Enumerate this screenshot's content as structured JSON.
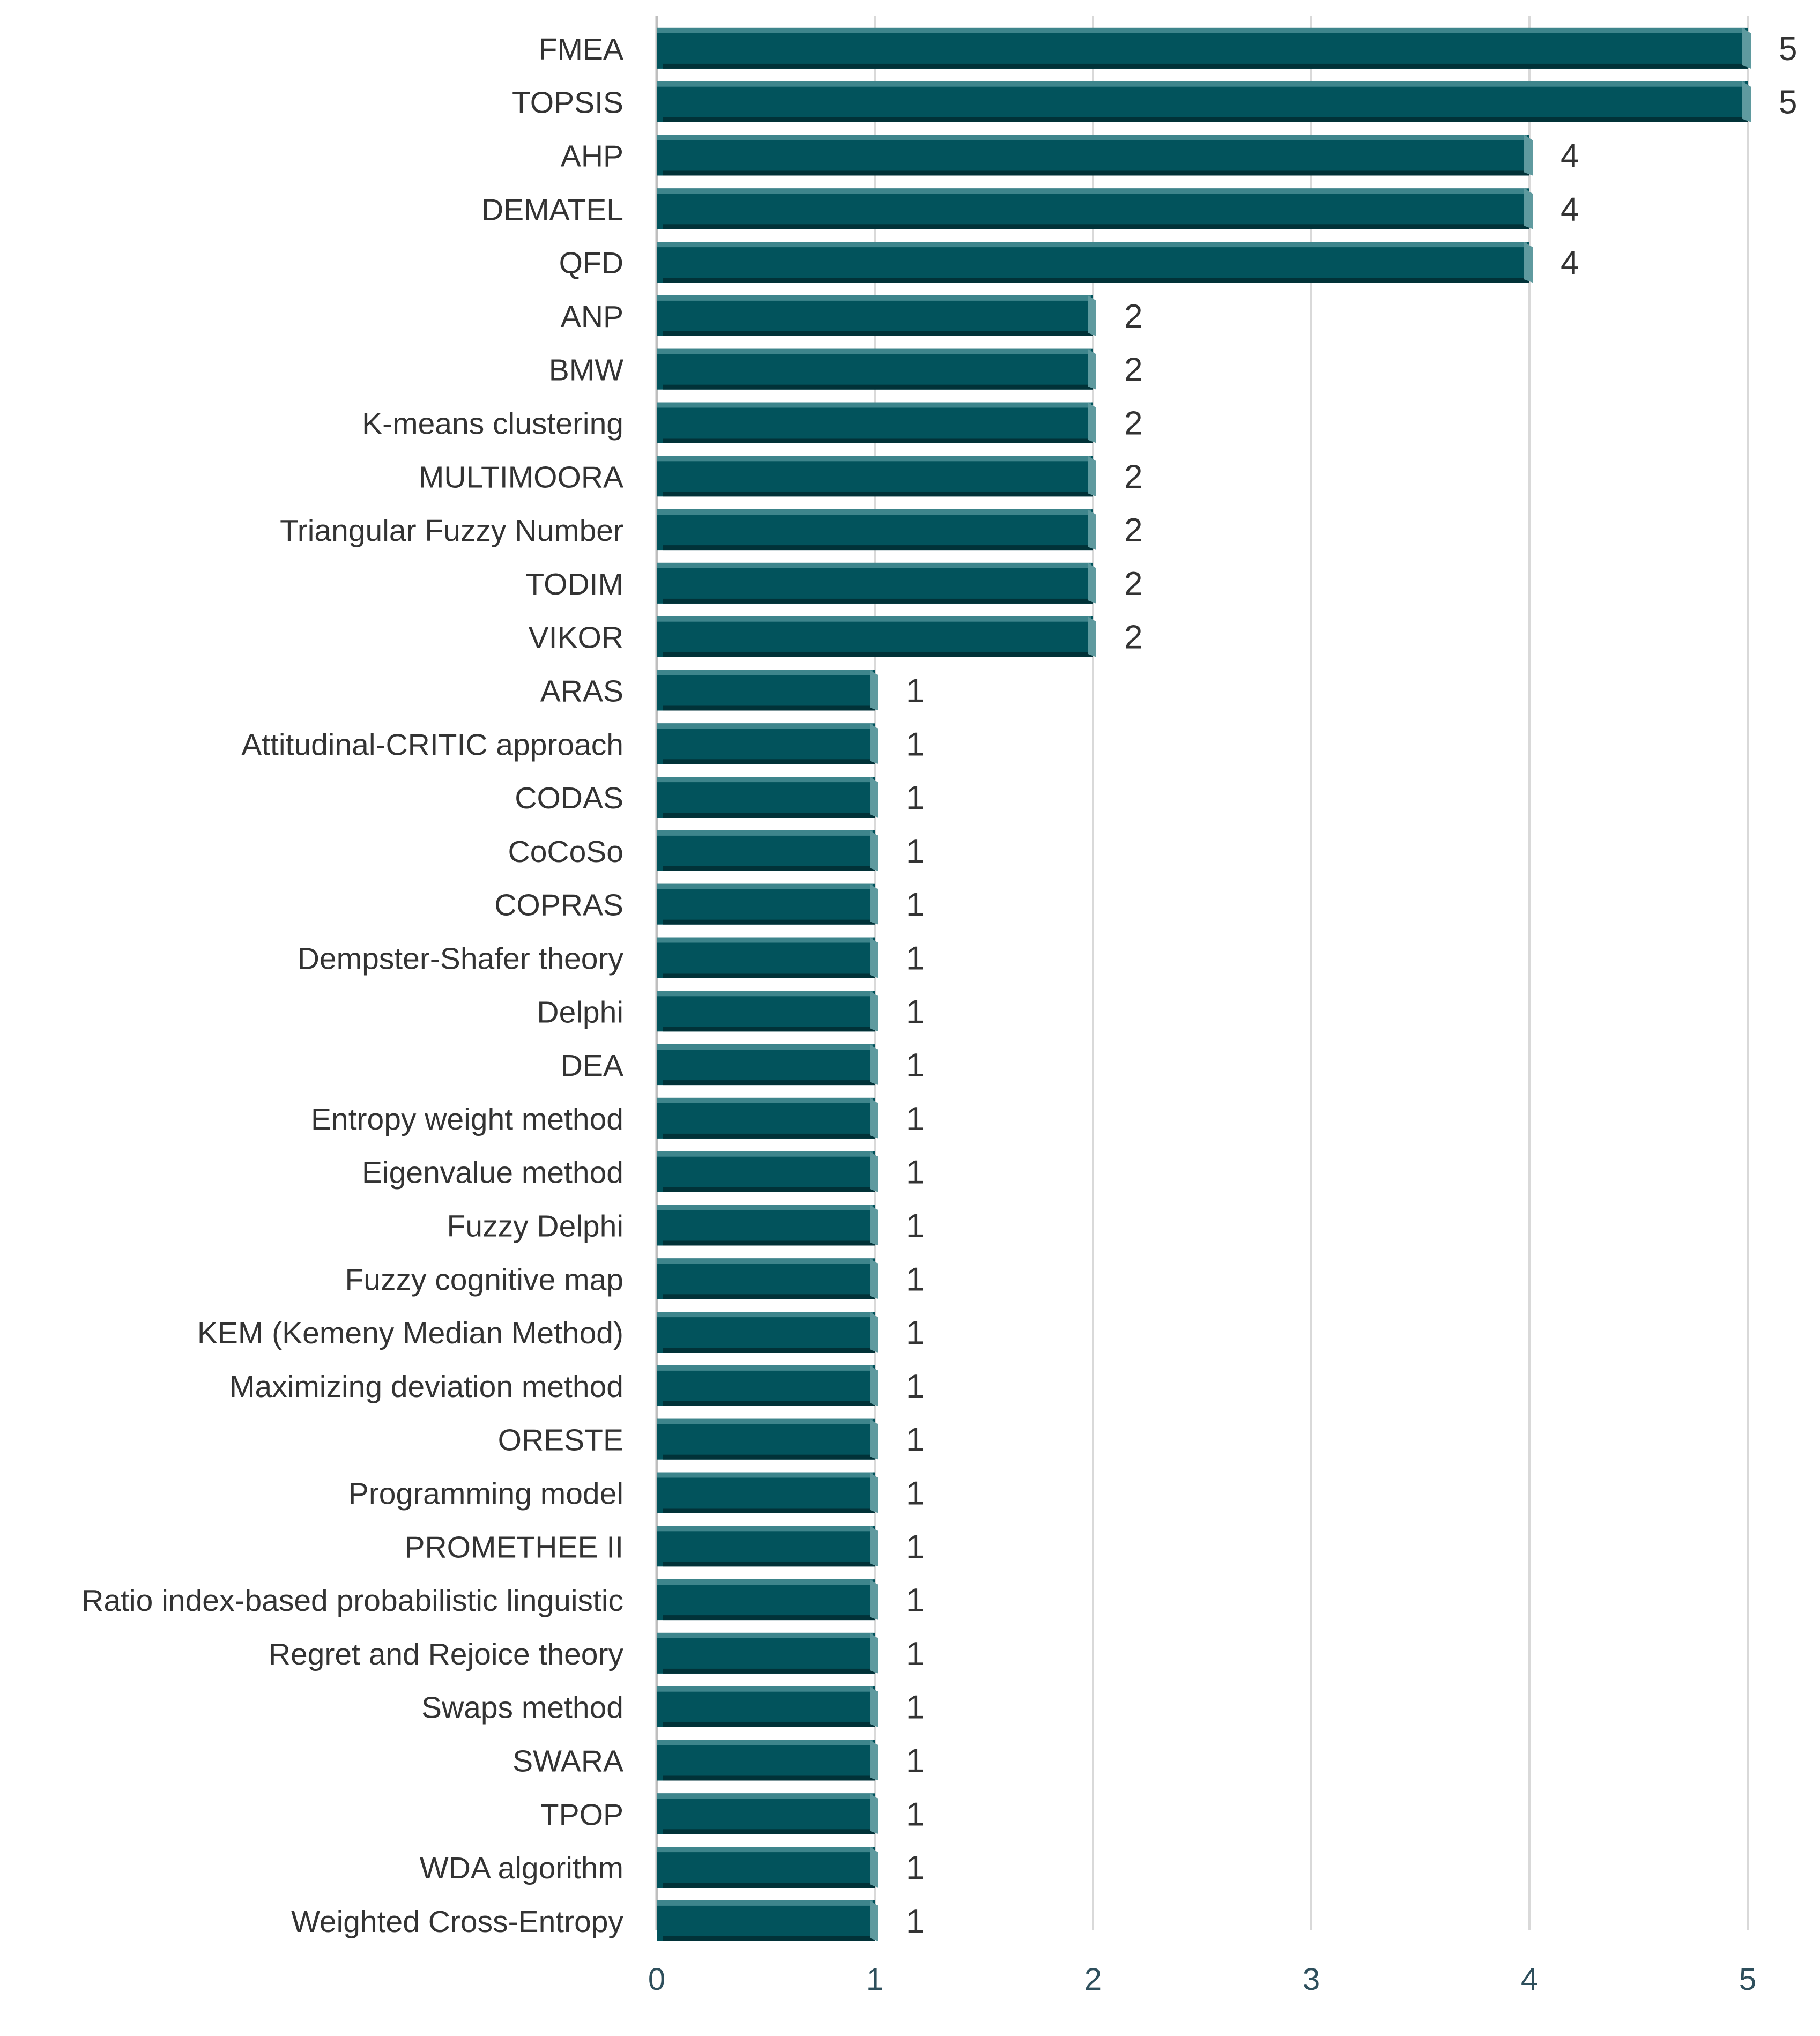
{
  "chart_data": {
    "type": "bar",
    "orientation": "horizontal",
    "title": "",
    "xlabel": "",
    "ylabel": "",
    "xlim": [
      0,
      5
    ],
    "x_ticks": [
      0,
      1,
      2,
      3,
      4,
      5
    ],
    "grid": "vertical",
    "categories": [
      "FMEA",
      "TOPSIS",
      "AHP",
      "DEMATEL",
      "QFD",
      "ANP",
      "BMW",
      "K-means clustering",
      "MULTIMOORA",
      "Triangular Fuzzy Number",
      "TODIM",
      "VIKOR",
      "ARAS",
      "Attitudinal-CRITIC approach",
      "CODAS",
      "CoCoSo",
      "COPRAS",
      "Dempster-Shafer theory",
      "Delphi",
      "DEA",
      "Entropy weight method",
      "Eigenvalue method",
      "Fuzzy Delphi",
      "Fuzzy cognitive map",
      "KEM (Kemeny Median Method)",
      "Maximizing deviation method",
      "ORESTE",
      "Programming model",
      "PROMETHEE II",
      "Ratio index-based probabilistic linguistic",
      "Regret and Rejoice theory",
      "Swaps method",
      "SWARA",
      "TPOP",
      "WDA algorithm",
      "Weighted Cross-Entropy"
    ],
    "values": [
      5,
      5,
      4,
      4,
      4,
      2,
      2,
      2,
      2,
      2,
      2,
      2,
      1,
      1,
      1,
      1,
      1,
      1,
      1,
      1,
      1,
      1,
      1,
      1,
      1,
      1,
      1,
      1,
      1,
      1,
      1,
      1,
      1,
      1,
      1,
      1
    ],
    "data_labels": true
  },
  "colors": {
    "bar_front": "#02535c",
    "bar_top": "#3e858c",
    "bar_side": "#5f9a9f",
    "bar_shadow": "#013238",
    "grid": "#d9d9d9",
    "axis_line": "#bfbfbf",
    "tick_text": "#2e4f5c",
    "label_text": "#333333"
  }
}
